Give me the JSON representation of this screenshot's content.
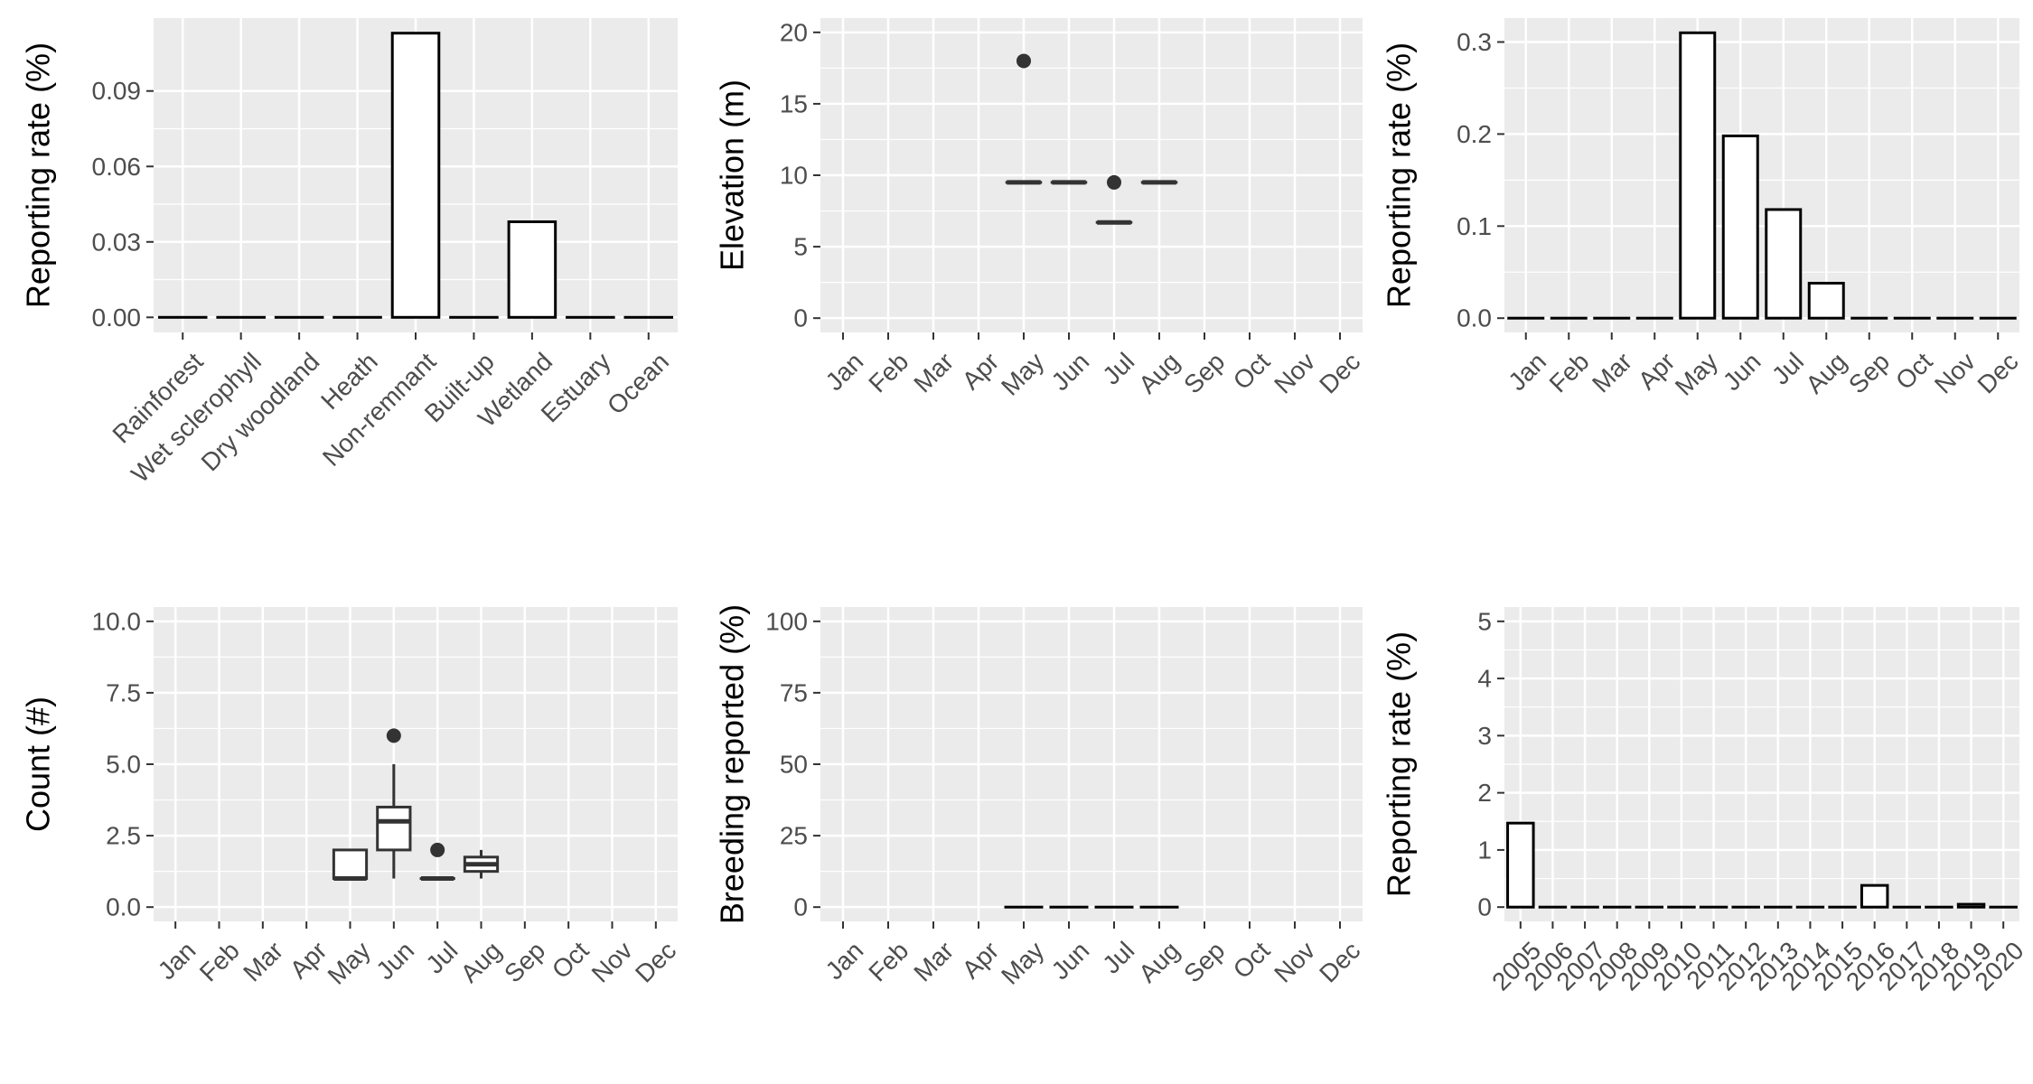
{
  "colors": {
    "panel_background": "#ebebeb",
    "grid": "#ffffff",
    "bar_fill": "#ffffff",
    "bar_stroke": "#000000",
    "box_stroke": "#333333",
    "outlier": "#333333",
    "tick_text": "#4d4d4d",
    "axis_title": "#000000"
  },
  "chart_data": [
    {
      "type": "bar",
      "xlabel": "",
      "ylabel": "Reporting rate (%)",
      "categories": [
        "Rainforest",
        "Wet sclerophyll",
        "Dry woodland",
        "Heath",
        "Non-remnant",
        "Built-up",
        "Wetland",
        "Estuary",
        "Ocean"
      ],
      "values": [
        0,
        0,
        0,
        0,
        0.113,
        0,
        0.038,
        0,
        0
      ],
      "ylim": [
        -0.006,
        0.119
      ],
      "yticks": [
        0,
        0.03,
        0.06,
        0.09
      ],
      "ytick_labels": [
        "0.00",
        "0.03",
        "0.06",
        "0.09"
      ],
      "xtick_rotation": 45,
      "grid": true,
      "legend": "none"
    },
    {
      "type": "box",
      "xlabel": "",
      "ylabel": "Elevation (m)",
      "categories": [
        "Jan",
        "Feb",
        "Mar",
        "Apr",
        "May",
        "Jun",
        "Jul",
        "Aug",
        "Sep",
        "Oct",
        "Nov",
        "Dec"
      ],
      "boxes": [
        {
          "category": "May",
          "min": 9.5,
          "q1": 9.5,
          "median": 9.5,
          "q3": 9.5,
          "max": 9.5,
          "outliers": [
            18
          ]
        },
        {
          "category": "Jun",
          "min": 9.5,
          "q1": 9.5,
          "median": 9.5,
          "q3": 9.5,
          "max": 9.5,
          "outliers": []
        },
        {
          "category": "Jul",
          "min": 6.7,
          "q1": 6.7,
          "median": 6.7,
          "q3": 6.7,
          "max": 6.7,
          "outliers": [
            9.5
          ]
        },
        {
          "category": "Aug",
          "min": 9.5,
          "q1": 9.5,
          "median": 9.5,
          "q3": 9.5,
          "max": 9.5,
          "outliers": []
        }
      ],
      "ylim": [
        -1,
        21
      ],
      "yticks": [
        0,
        5,
        10,
        15,
        20
      ],
      "ytick_labels": [
        "0",
        "5",
        "10",
        "15",
        "20"
      ],
      "xtick_rotation": 45,
      "grid": true,
      "legend": "none"
    },
    {
      "type": "bar",
      "xlabel": "",
      "ylabel": "Reporting rate (%)",
      "categories": [
        "Jan",
        "Feb",
        "Mar",
        "Apr",
        "May",
        "Jun",
        "Jul",
        "Aug",
        "Sep",
        "Oct",
        "Nov",
        "Dec"
      ],
      "values": [
        0,
        0,
        0,
        0,
        0.31,
        0.198,
        0.118,
        0.038,
        0,
        0,
        0,
        0
      ],
      "ylim": [
        -0.0155,
        0.326
      ],
      "yticks": [
        0,
        0.1,
        0.2,
        0.3
      ],
      "ytick_labels": [
        "0.0",
        "0.1",
        "0.2",
        "0.3"
      ],
      "xtick_rotation": 45,
      "grid": true,
      "legend": "none"
    },
    {
      "type": "box",
      "xlabel": "",
      "ylabel": "Count (#)",
      "categories": [
        "Jan",
        "Feb",
        "Mar",
        "Apr",
        "May",
        "Jun",
        "Jul",
        "Aug",
        "Sep",
        "Oct",
        "Nov",
        "Dec"
      ],
      "boxes": [
        {
          "category": "May",
          "min": 1,
          "q1": 1,
          "median": 1,
          "q3": 2,
          "max": 2,
          "outliers": []
        },
        {
          "category": "Jun",
          "min": 1,
          "q1": 2,
          "median": 3,
          "q3": 3.5,
          "max": 5,
          "outliers": [
            6
          ]
        },
        {
          "category": "Jul",
          "min": 1,
          "q1": 1,
          "median": 1,
          "q3": 1,
          "max": 1,
          "outliers": [
            2
          ]
        },
        {
          "category": "Aug",
          "min": 1,
          "q1": 1.25,
          "median": 1.5,
          "q3": 1.75,
          "max": 2,
          "outliers": []
        }
      ],
      "ylim": [
        -0.5,
        10.5
      ],
      "yticks": [
        0,
        2.5,
        5,
        7.5,
        10
      ],
      "ytick_labels": [
        "0.0",
        "2.5",
        "5.0",
        "7.5",
        "10.0"
      ],
      "xtick_rotation": 45,
      "grid": true,
      "legend": "none"
    },
    {
      "type": "bar",
      "xlabel": "",
      "ylabel": "Breeding reported (%)",
      "categories": [
        "Jan",
        "Feb",
        "Mar",
        "Apr",
        "May",
        "Jun",
        "Jul",
        "Aug",
        "Sep",
        "Oct",
        "Nov",
        "Dec"
      ],
      "values": [
        null,
        null,
        null,
        null,
        0,
        0,
        0,
        0,
        null,
        null,
        null,
        null
      ],
      "ylim": [
        -5,
        105
      ],
      "yticks": [
        0,
        25,
        50,
        75,
        100
      ],
      "ytick_labels": [
        "0",
        "25",
        "50",
        "75",
        "100"
      ],
      "xtick_rotation": 45,
      "grid": true,
      "legend": "none"
    },
    {
      "type": "bar",
      "xlabel": "",
      "ylabel": "Reporting rate (%)",
      "categories": [
        "2005",
        "2006",
        "2007",
        "2008",
        "2009",
        "2010",
        "2011",
        "2012",
        "2013",
        "2014",
        "2015",
        "2016",
        "2017",
        "2018",
        "2019",
        "2020"
      ],
      "values": [
        1.47,
        0,
        0,
        0,
        0,
        0,
        0,
        0,
        0,
        0,
        0,
        0.38,
        0,
        0,
        0.05,
        0
      ],
      "ylim": [
        -0.25,
        5.25
      ],
      "yticks": [
        0,
        1,
        2,
        3,
        4,
        5
      ],
      "ytick_labels": [
        "0",
        "1",
        "2",
        "3",
        "4",
        "5"
      ],
      "xtick_rotation": 45,
      "grid": true,
      "legend": "none"
    }
  ]
}
